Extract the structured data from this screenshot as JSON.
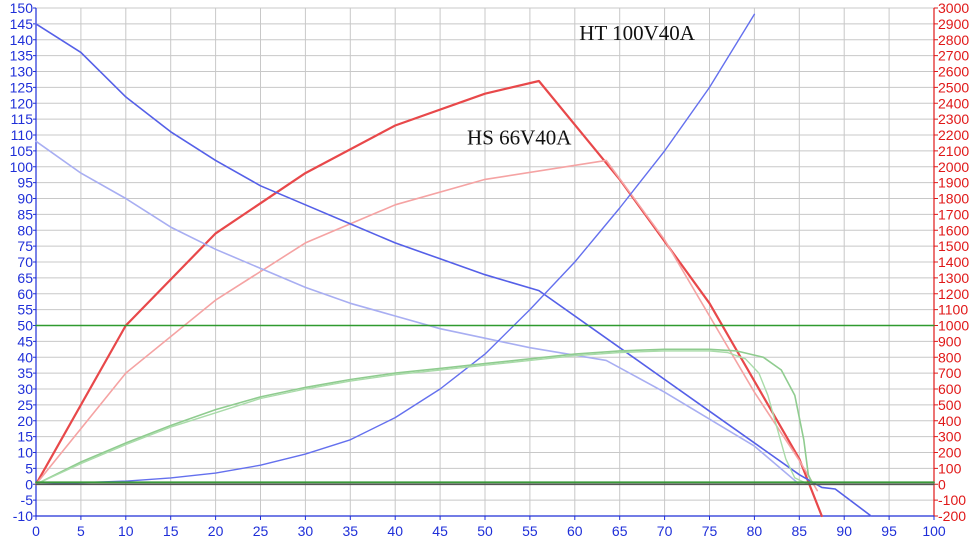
{
  "chart_data": {
    "type": "line",
    "grid": true,
    "x_axis": {
      "min": 0,
      "max": 100,
      "ticks": [
        0,
        5,
        10,
        15,
        20,
        25,
        30,
        35,
        40,
        45,
        50,
        55,
        60,
        65,
        70,
        75,
        80,
        85,
        90,
        95,
        100
      ]
    },
    "y_left": {
      "min": -10,
      "max": 150,
      "ticks": [
        -10,
        -5,
        0,
        5,
        10,
        15,
        20,
        25,
        30,
        35,
        40,
        45,
        50,
        55,
        60,
        65,
        70,
        75,
        80,
        85,
        90,
        95,
        100,
        105,
        110,
        115,
        120,
        125,
        130,
        135,
        140,
        145,
        150
      ]
    },
    "y_right": {
      "min": -200,
      "max": 3000,
      "ticks": [
        -200,
        -100,
        0,
        100,
        200,
        300,
        400,
        500,
        600,
        700,
        800,
        900,
        1000,
        1100,
        1200,
        1300,
        1400,
        1500,
        1600,
        1700,
        1800,
        1900,
        2000,
        2100,
        2200,
        2300,
        2400,
        2500,
        2600,
        2700,
        2800,
        2900,
        3000
      ]
    },
    "annotations": [
      {
        "text": "HT 100V40A",
        "x": 60.5,
        "y": 140
      },
      {
        "text": "HS 66V40A",
        "x": 48.0,
        "y": 107
      }
    ],
    "series": [
      {
        "axis": "right",
        "color": "#e8484a",
        "width": 2.2,
        "points": [
          [
            0,
            0
          ],
          [
            10,
            1000
          ],
          [
            20,
            1580
          ],
          [
            30,
            1960
          ],
          [
            40,
            2260
          ],
          [
            50,
            2460
          ],
          [
            56,
            2540
          ],
          [
            65,
            1920
          ],
          [
            75,
            1140
          ],
          [
            85,
            160
          ],
          [
            87.5,
            -200
          ]
        ]
      },
      {
        "axis": "right",
        "color": "#f5a3a3",
        "width": 1.6,
        "points": [
          [
            0,
            0
          ],
          [
            10,
            700
          ],
          [
            20,
            1160
          ],
          [
            30,
            1520
          ],
          [
            40,
            1760
          ],
          [
            50,
            1920
          ],
          [
            63.5,
            2040
          ],
          [
            70,
            1540
          ],
          [
            80,
            580
          ],
          [
            85,
            150
          ],
          [
            87,
            -40
          ]
        ]
      },
      {
        "axis": "left",
        "color": "#5560e8",
        "width": 1.6,
        "points": [
          [
            0,
            145
          ],
          [
            5,
            136
          ],
          [
            10,
            122
          ],
          [
            15,
            111
          ],
          [
            20,
            102
          ],
          [
            25,
            94
          ],
          [
            30,
            88
          ],
          [
            35,
            82
          ],
          [
            40,
            76
          ],
          [
            45,
            71
          ],
          [
            50,
            66
          ],
          [
            56,
            61
          ],
          [
            65,
            43
          ],
          [
            75,
            23
          ],
          [
            85,
            3
          ],
          [
            87.5,
            -1
          ],
          [
            89,
            -1.5
          ],
          [
            93,
            -10
          ]
        ]
      },
      {
        "axis": "left",
        "color": "#a8aef2",
        "width": 1.6,
        "points": [
          [
            0,
            108
          ],
          [
            5,
            98
          ],
          [
            10,
            90
          ],
          [
            15,
            81
          ],
          [
            20,
            74
          ],
          [
            25,
            68
          ],
          [
            30,
            62
          ],
          [
            35,
            57
          ],
          [
            40,
            53
          ],
          [
            45,
            49
          ],
          [
            50,
            46
          ],
          [
            55,
            43
          ],
          [
            63.5,
            39
          ],
          [
            70,
            29
          ],
          [
            80,
            12
          ],
          [
            85,
            0
          ]
        ]
      },
      {
        "axis": "left",
        "color": "#6470ee",
        "width": 1.4,
        "points": [
          [
            0,
            0
          ],
          [
            10,
            1
          ],
          [
            15,
            2
          ],
          [
            20,
            3.5
          ],
          [
            25,
            6
          ],
          [
            30,
            9.5
          ],
          [
            35,
            14
          ],
          [
            40,
            21
          ],
          [
            45,
            30
          ],
          [
            50,
            41
          ],
          [
            55,
            55
          ],
          [
            60,
            70
          ],
          [
            65,
            87
          ],
          [
            70,
            105
          ],
          [
            75,
            125
          ],
          [
            80,
            148
          ]
        ]
      },
      {
        "axis": "left",
        "color": "#8fcc8f",
        "width": 1.6,
        "points": [
          [
            0,
            0
          ],
          [
            5,
            7
          ],
          [
            10,
            13
          ],
          [
            15,
            18.5
          ],
          [
            20,
            23.5
          ],
          [
            25,
            27.5
          ],
          [
            30,
            30.5
          ],
          [
            35,
            33
          ],
          [
            40,
            35
          ],
          [
            45,
            36.5
          ],
          [
            50,
            38
          ],
          [
            55,
            39.5
          ],
          [
            60,
            41
          ],
          [
            65,
            42
          ],
          [
            70,
            42.5
          ],
          [
            75,
            42.5
          ],
          [
            78,
            42
          ],
          [
            81,
            40
          ],
          [
            83,
            36
          ],
          [
            84.5,
            28
          ],
          [
            85.5,
            14
          ],
          [
            86,
            3
          ],
          [
            86.5,
            0
          ],
          [
            100,
            0
          ]
        ]
      },
      {
        "axis": "left",
        "color": "#a9dba9",
        "width": 1.4,
        "points": [
          [
            0,
            0
          ],
          [
            5,
            6.5
          ],
          [
            10,
            12.5
          ],
          [
            15,
            18
          ],
          [
            20,
            22.5
          ],
          [
            25,
            27
          ],
          [
            30,
            30
          ],
          [
            35,
            32.5
          ],
          [
            40,
            34.5
          ],
          [
            45,
            36
          ],
          [
            50,
            37.5
          ],
          [
            55,
            39
          ],
          [
            60,
            40.5
          ],
          [
            65,
            41.5
          ],
          [
            70,
            42
          ],
          [
            75,
            42
          ],
          [
            77,
            41.5
          ],
          [
            79,
            39.5
          ],
          [
            80.5,
            35
          ],
          [
            81.5,
            28
          ],
          [
            82.5,
            18
          ],
          [
            83.5,
            8
          ],
          [
            84.5,
            2
          ],
          [
            86,
            0
          ]
        ]
      },
      {
        "axis": "left",
        "color": "#2f9a2f",
        "width": 1.5,
        "points": [
          [
            0,
            50
          ],
          [
            100,
            50
          ]
        ]
      },
      {
        "axis": "left",
        "color": "#3a9a3a",
        "width": 1.8,
        "points": [
          [
            0,
            0.6
          ],
          [
            100,
            0.6
          ]
        ]
      },
      {
        "axis": "left",
        "color": "#555555",
        "width": 1.6,
        "points": [
          [
            0,
            0
          ],
          [
            100,
            0
          ]
        ]
      }
    ]
  }
}
